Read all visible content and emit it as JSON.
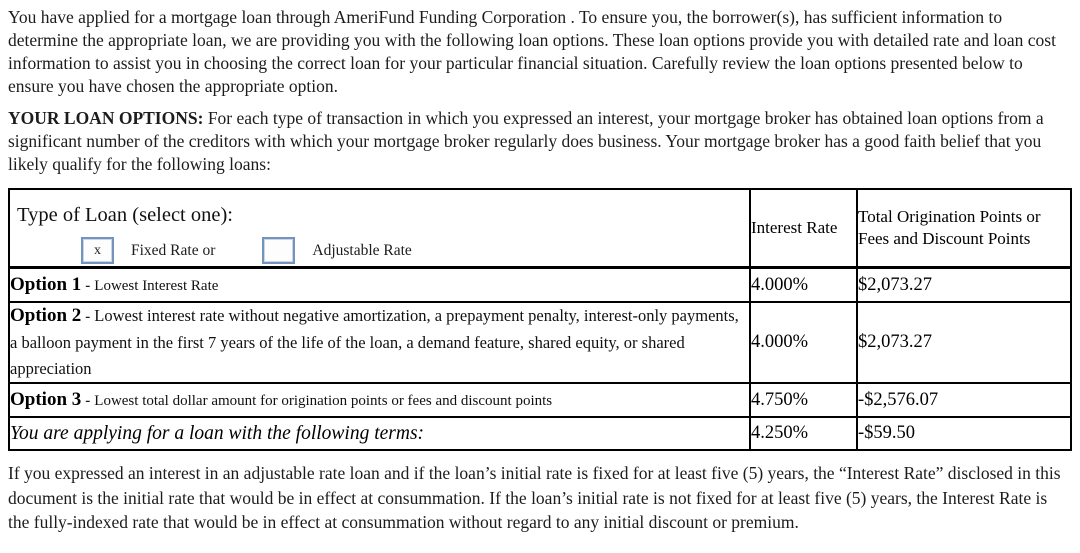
{
  "intro_paragraph": "You have applied for a mortgage loan through AmeriFund Funding Corporation . To ensure you, the borrower(s), has sufficient information to determine the appropriate loan, we are providing you with the following loan options. These loan options provide you with detailed rate and loan cost information to assist you in choosing the correct loan for your particular financial situation. Carefully review the loan options presented below to ensure you have chosen the appropriate option.",
  "loan_options": {
    "heading": "YOUR LOAN OPTIONS:",
    "text": "For each type of transaction in which you expressed an interest, your mortgage broker has obtained loan options from a significant number of the creditors with which your mortgage broker regularly does business. Your mortgage broker has a good faith belief that you likely qualify for the following loans:"
  },
  "table": {
    "type_of_loan_label": "Type of Loan (select one):",
    "fixed_rate": {
      "checked": true,
      "mark": "x",
      "label": "Fixed Rate or"
    },
    "adjustable_rate": {
      "checked": false,
      "mark": "",
      "label": "Adjustable Rate"
    },
    "columns": {
      "interest_rate": "Interest Rate",
      "points": "Total Origination Points or Fees and Discount Points"
    },
    "rows": [
      {
        "option": "Option 1",
        "sep": "-",
        "description": "Lowest Interest Rate",
        "interest_rate": "4.000%",
        "points_fees": "$2,073.27"
      },
      {
        "option": "Option 2",
        "sep": "-",
        "description": "Lowest interest rate without negative amortization, a prepayment penalty, interest-only payments, a balloon payment in the first 7 years of the life of the loan, a demand feature, shared equity, or shared appreciation",
        "interest_rate": "4.000%",
        "points_fees": "$2,073.27"
      },
      {
        "option": "Option 3",
        "sep": "-",
        "description": "Lowest total dollar amount for origination points or fees and discount points",
        "interest_rate": "4.750%",
        "points_fees": "-$2,576.07"
      }
    ],
    "summary_row": {
      "label": "You are applying for a loan with the following terms:",
      "interest_rate": "4.250%",
      "points_fees": "-$59.50"
    }
  },
  "footer_paragraph": "If you expressed an interest in an adjustable rate loan and if the loan’s initial rate is fixed for at least five (5) years, the “Interest Rate” disclosed in this document is the initial rate that would be in effect at consummation. If the loan’s initial rate is not fixed for at least five (5) years, the Interest Rate is the fully-indexed rate that would be in effect at consummation without regard to any initial discount or premium."
}
